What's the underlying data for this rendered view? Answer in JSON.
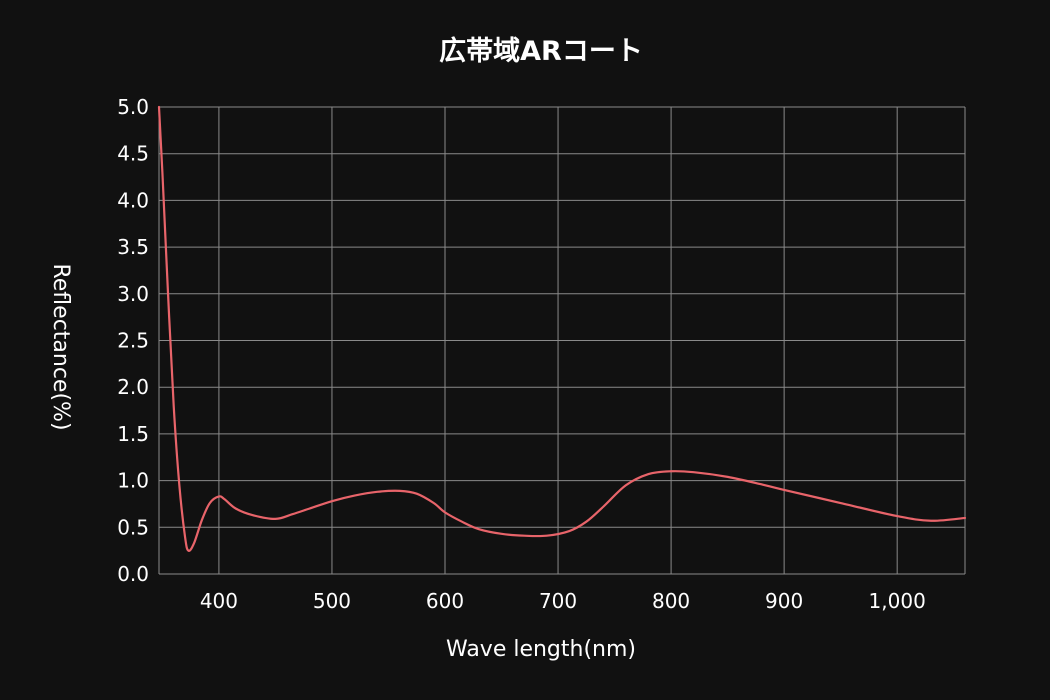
{
  "chart_data": {
    "type": "line",
    "title": "広帯域ARコート",
    "xlabel": "Wave length(nm)",
    "ylabel": "Reflectance(%)",
    "xlim": [
      347,
      1060
    ],
    "ylim": [
      0,
      5
    ],
    "x_ticks": [
      400,
      500,
      600,
      700,
      800,
      900,
      1000
    ],
    "x_tick_labels": [
      "400",
      "500",
      "600",
      "700",
      "800",
      "900",
      "1,000"
    ],
    "y_ticks": [
      0,
      0.5,
      1,
      1.5,
      2,
      2.5,
      3,
      3.5,
      4,
      4.5,
      5
    ],
    "y_tick_labels": [
      "0.0",
      "0.5",
      "1.0",
      "1.5",
      "2.0",
      "2.5",
      "3.0",
      "3.5",
      "4.0",
      "4.5",
      "5.0"
    ],
    "grid": true,
    "series": [
      {
        "color": "#e8646a",
        "x": [
          347,
          350,
          355,
          360,
          365,
          370,
          373,
          378,
          385,
          392,
          400,
          405,
          415,
          430,
          450,
          465,
          480,
          500,
          520,
          540,
          560,
          575,
          590,
          600,
          615,
          630,
          650,
          670,
          690,
          710,
          725,
          740,
          760,
          780,
          800,
          820,
          850,
          880,
          900,
          950,
          1000,
          1030,
          1060
        ],
        "y": [
          5.0,
          4.3,
          3.0,
          1.8,
          0.95,
          0.4,
          0.25,
          0.33,
          0.58,
          0.76,
          0.83,
          0.8,
          0.7,
          0.63,
          0.59,
          0.64,
          0.7,
          0.78,
          0.84,
          0.88,
          0.89,
          0.86,
          0.76,
          0.66,
          0.56,
          0.48,
          0.43,
          0.41,
          0.41,
          0.46,
          0.56,
          0.72,
          0.95,
          1.07,
          1.1,
          1.09,
          1.04,
          0.96,
          0.9,
          0.76,
          0.62,
          0.57,
          0.6
        ]
      }
    ]
  }
}
